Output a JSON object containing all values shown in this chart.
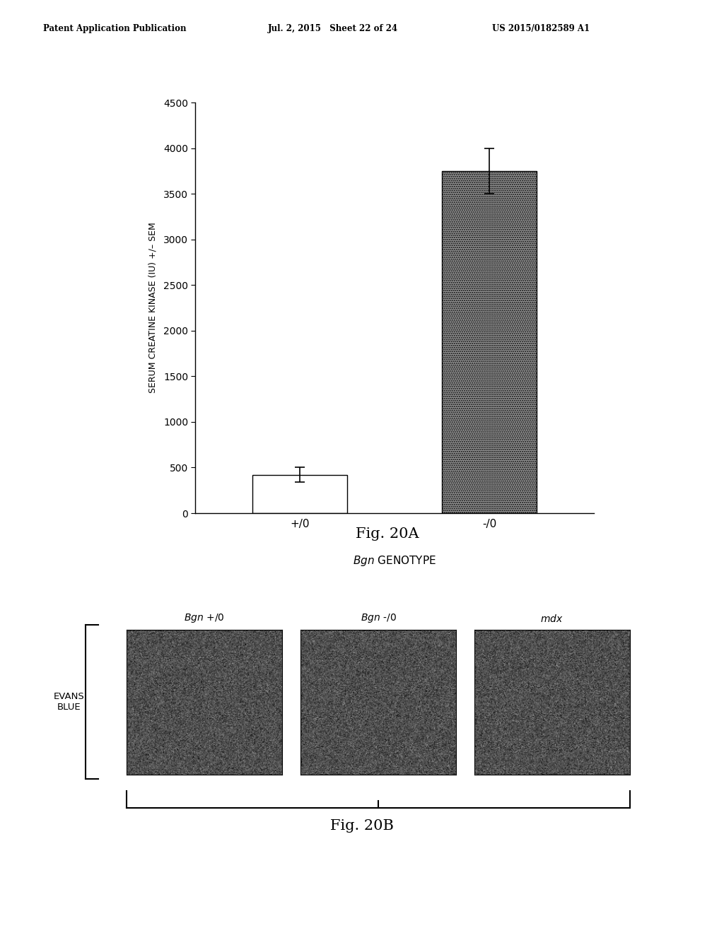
{
  "header_left": "Patent Application Publication",
  "header_mid": "Jul. 2, 2015   Sheet 22 of 24",
  "header_right": "US 2015/0182589 A1",
  "fig20a_title": "Fig. 20A",
  "fig20b_title": "Fig. 20B",
  "bar_categories": [
    "+/0",
    "-/0"
  ],
  "bar_values": [
    420,
    3750
  ],
  "bar_errors": [
    80,
    250
  ],
  "bar_colors": [
    "#ffffff",
    "#aaaaaa"
  ],
  "ylabel": "SERUM CREATINE KINASE (IU) +/– SEM",
  "xlabel_italic": "Bgn",
  "xlabel_normal": " GENOTYPE",
  "ylim": [
    0,
    4500
  ],
  "yticks": [
    0,
    500,
    1000,
    1500,
    2000,
    2500,
    3000,
    3500,
    4000,
    4500
  ],
  "image_labels": [
    "Bgn +/0",
    "Bgn -/0",
    "mdx"
  ],
  "image_row_label": "EVANS\nBLUE",
  "bg_color": "#ffffff",
  "noise_mean": 80,
  "noise_std": 25
}
